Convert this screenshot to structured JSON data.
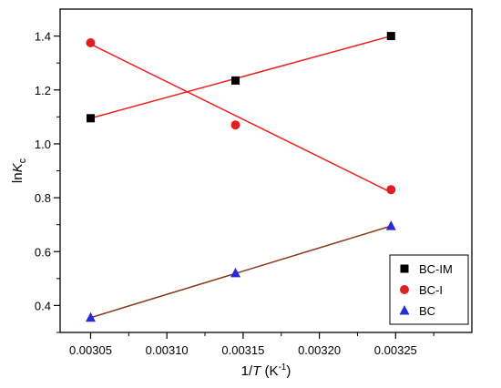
{
  "chart_data": {
    "type": "scatter",
    "x": [
      0.00305,
      0.003145,
      0.003247
    ],
    "x_tick_labels": [
      "0.00305",
      "0.00310",
      "0.00315",
      "0.00320",
      "0.00325"
    ],
    "x_ticks": [
      0.00305,
      0.0031,
      0.00315,
      0.0032,
      0.00325
    ],
    "y_tick_labels": [
      "0.4",
      "0.6",
      "0.8",
      "1.0",
      "1.2",
      "1.4"
    ],
    "y_ticks": [
      0.4,
      0.6,
      0.8,
      1.0,
      1.2,
      1.4
    ],
    "xlim": [
      0.00303,
      0.0033
    ],
    "ylim": [
      0.3,
      1.5
    ],
    "xlabel": {
      "prefix": "1/",
      "italic": "T",
      "unit_open": " (K",
      "superscript": "-1",
      "unit_close": ")"
    },
    "ylabel": {
      "prefix": "ln",
      "italic": "K",
      "subscript": "c"
    },
    "grid": false,
    "legend_position": "bottom-right",
    "series": [
      {
        "name": "BC-IM",
        "marker": "square",
        "marker_color": "#000000",
        "line_color": "#ee1c1c",
        "values": [
          1.095,
          1.235,
          1.4
        ],
        "fit": [
          1.095,
          1.4
        ]
      },
      {
        "name": "BC-I",
        "marker": "circle",
        "marker_color": "#e02020",
        "line_color": "#ee1c1c",
        "values": [
          1.375,
          1.07,
          0.83
        ],
        "fit": [
          1.37,
          0.82
        ]
      },
      {
        "name": "BC",
        "marker": "triangle",
        "marker_color": "#2a2ad6",
        "line_color": "#8b3a1a",
        "values": [
          0.355,
          0.52,
          0.695
        ],
        "fit": [
          0.355,
          0.695
        ]
      }
    ]
  }
}
